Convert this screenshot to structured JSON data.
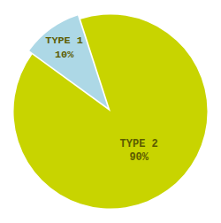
{
  "chart_data": {
    "type": "pie",
    "categories": [
      "TYPE 2",
      "TYPE 1"
    ],
    "values": [
      90,
      10
    ],
    "value_labels": [
      "90%",
      "10%"
    ],
    "colors": [
      "#c8d400",
      "#add8e6"
    ],
    "data_labels": true
  }
}
